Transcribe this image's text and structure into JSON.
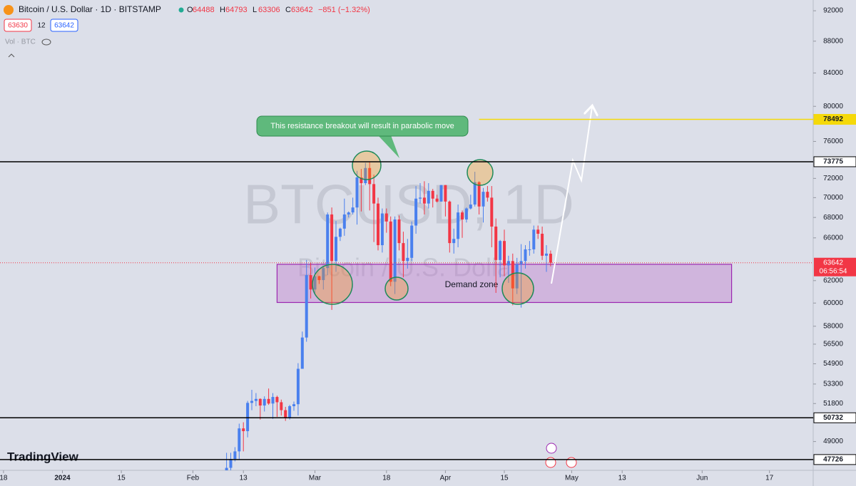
{
  "header": {
    "title": "Bitcoin / U.S. Dollar · 1D · BITSTAMP",
    "ohlc": [
      {
        "label": "O",
        "value": "64488"
      },
      {
        "label": "H",
        "value": "64793"
      },
      {
        "label": "L",
        "value": "63306"
      },
      {
        "label": "C",
        "value": "63642"
      }
    ],
    "change": "−851 (−1.32%)",
    "bid": "63630",
    "spread": "12",
    "ask": "63642",
    "volume": "Vol · BTC"
  },
  "watermark": {
    "symbol": "BTCUSD, 1D",
    "name": "Bitcoin / U.S. Dollar"
  },
  "brand": "TradingView",
  "chart_data": {
    "type": "candlestick",
    "log": true,
    "up_color": "#4a80ee",
    "down_color": "#f23645",
    "x": [
      "2024-02-09",
      "2024-02-10",
      "2024-02-11",
      "2024-02-12",
      "2024-02-13",
      "2024-02-14",
      "2024-02-15",
      "2024-02-16",
      "2024-02-17",
      "2024-02-18",
      "2024-02-19",
      "2024-02-20",
      "2024-02-21",
      "2024-02-22",
      "2024-02-23",
      "2024-02-24",
      "2024-02-25",
      "2024-02-26",
      "2024-02-27",
      "2024-02-28",
      "2024-02-29",
      "2024-03-01",
      "2024-03-02",
      "2024-03-03",
      "2024-03-04",
      "2024-03-05",
      "2024-03-06",
      "2024-03-07",
      "2024-03-08",
      "2024-03-09",
      "2024-03-10",
      "2024-03-11",
      "2024-03-12",
      "2024-03-13",
      "2024-03-14",
      "2024-03-15",
      "2024-03-16",
      "2024-03-17",
      "2024-03-18",
      "2024-03-19",
      "2024-03-20",
      "2024-03-21",
      "2024-03-22",
      "2024-03-23",
      "2024-03-24",
      "2024-03-25",
      "2024-03-26",
      "2024-03-27",
      "2024-03-28",
      "2024-03-29",
      "2024-03-30",
      "2024-03-31",
      "2024-04-01",
      "2024-04-02",
      "2024-04-03",
      "2024-04-04",
      "2024-04-05",
      "2024-04-06",
      "2024-04-07",
      "2024-04-08",
      "2024-04-09",
      "2024-04-10",
      "2024-04-11",
      "2024-04-12",
      "2024-04-13",
      "2024-04-14",
      "2024-04-15",
      "2024-04-16",
      "2024-04-17",
      "2024-04-18",
      "2024-04-19",
      "2024-04-20",
      "2024-04-21",
      "2024-04-22",
      "2024-04-23",
      "2024-04-24",
      "2024-04-25",
      "2024-04-26"
    ],
    "open": [
      45300,
      47150,
      47770,
      48300,
      49950,
      49750,
      51850,
      52000,
      52150,
      51650,
      52150,
      51800,
      52300,
      51900,
      51300,
      50750,
      51600,
      51750,
      54500,
      57050,
      62500,
      61200,
      62400,
      62050,
      63150,
      68300,
      63800,
      66100,
      66900,
      68300,
      68500,
      69000,
      72100,
      71500,
      73100,
      71400,
      69400,
      65300,
      68400,
      67600,
      61900,
      67800,
      65500,
      63800,
      64100,
      67200,
      69900,
      70000,
      69400,
      70700,
      69900,
      69600,
      71300,
      69600,
      65500,
      65900,
      68500,
      67800,
      68900,
      69300,
      71600,
      69100,
      70600,
      70000,
      67100,
      63900,
      65700,
      63400,
      63800,
      61300,
      63500,
      63800,
      64900,
      64900,
      66800,
      66400,
      64300,
      64488
    ],
    "high": [
      48200,
      48200,
      48600,
      50300,
      50400,
      52000,
      52850,
      52600,
      52200,
      52350,
      52950,
      52600,
      52400,
      52100,
      51550,
      51700,
      51950,
      54950,
      57550,
      63900,
      63650,
      63200,
      62450,
      63300,
      68500,
      69000,
      67650,
      67000,
      69900,
      68600,
      70000,
      72800,
      73000,
      73650,
      73800,
      72400,
      70000,
      68900,
      68900,
      68100,
      68100,
      68200,
      66600,
      65900,
      67600,
      71200,
      71500,
      71700,
      71500,
      70900,
      70300,
      71300,
      71300,
      69700,
      66900,
      69300,
      68700,
      69000,
      70300,
      72700,
      71700,
      71000,
      71200,
      71200,
      67900,
      65800,
      66800,
      64300,
      64500,
      64100,
      65400,
      65300,
      65700,
      67200,
      67200,
      67100,
      65300,
      64793
    ],
    "low": [
      45200,
      46900,
      47600,
      47700,
      48300,
      49300,
      51300,
      51600,
      50600,
      51200,
      51700,
      50650,
      50800,
      50900,
      50500,
      50600,
      51250,
      50900,
      54500,
      56700,
      60400,
      60800,
      61700,
      61200,
      62500,
      59400,
      62800,
      65700,
      66200,
      68000,
      68300,
      67300,
      68600,
      71300,
      68700,
      65600,
      64800,
      64600,
      66500,
      61500,
      60800,
      64800,
      62300,
      63100,
      63800,
      66400,
      69400,
      68300,
      68900,
      69000,
      69500,
      69600,
      68100,
      64600,
      64500,
      65100,
      66000,
      67500,
      68800,
      69100,
      68300,
      67500,
      69600,
      65100,
      60900,
      62300,
      62400,
      61800,
      59800,
      60800,
      59600,
      63100,
      64300,
      64500,
      65900,
      63900,
      62800,
      63306
    ],
    "close": [
      47150,
      47770,
      48300,
      49950,
      49750,
      51850,
      52000,
      52150,
      51650,
      52150,
      51800,
      52300,
      51900,
      51300,
      50750,
      51600,
      51750,
      54500,
      57050,
      62500,
      61200,
      62400,
      62050,
      63150,
      68300,
      63800,
      66100,
      66900,
      68300,
      68500,
      69000,
      72100,
      71500,
      73100,
      71400,
      69400,
      65300,
      68400,
      67600,
      61900,
      67800,
      65500,
      63800,
      64100,
      67200,
      69900,
      70000,
      69400,
      70700,
      69900,
      69600,
      71300,
      69600,
      65500,
      65900,
      68500,
      67800,
      68900,
      69300,
      71600,
      69100,
      70600,
      70000,
      67100,
      63900,
      65700,
      63400,
      63800,
      61300,
      63500,
      63800,
      64900,
      64900,
      66800,
      66400,
      64300,
      64500,
      63642
    ],
    "ylim": [
      46980,
      93460
    ],
    "yticks": [
      92000,
      88000,
      84000,
      80000,
      76000,
      72000,
      70000,
      68000,
      66000,
      62000,
      60000,
      58000,
      56500,
      54900,
      53300,
      51800,
      49000
    ],
    "xticks": [
      {
        "value": "2023-12-18",
        "label": "18"
      },
      {
        "value": "2024-01-01",
        "label": "2024"
      },
      {
        "value": "2024-01-15",
        "label": "15"
      },
      {
        "value": "2024-02-01",
        "label": "Feb"
      },
      {
        "value": "2024-02-13",
        "label": "13"
      },
      {
        "value": "2024-03-01",
        "label": "Mar"
      },
      {
        "value": "2024-03-18",
        "label": "18"
      },
      {
        "value": "2024-04-01",
        "label": "Apr"
      },
      {
        "value": "2024-04-15",
        "label": "15"
      },
      {
        "value": "2024-05-01",
        "label": "May"
      },
      {
        "value": "2024-05-13",
        "label": "13"
      },
      {
        "value": "2024-06-01",
        "label": "Jun"
      },
      {
        "value": "2024-06-17",
        "label": "17"
      }
    ],
    "levels": [
      {
        "value": 73775,
        "color": "#000000"
      },
      {
        "value": 50732,
        "color": "#000000"
      },
      {
        "value": 47726,
        "color": "#000000"
      },
      {
        "value": 78492,
        "color": "#f5d90a",
        "from": "2024-04-09"
      }
    ],
    "last_price": {
      "value": 63642,
      "countdown": "06:56:54",
      "color": "#f23645"
    },
    "zone": {
      "label": "Demand zone",
      "low": 60050,
      "high": 63500,
      "from": "2024-02-21",
      "to": "2024-06-08"
    },
    "annotation": "This resistance breakout will result in parabolic move"
  }
}
